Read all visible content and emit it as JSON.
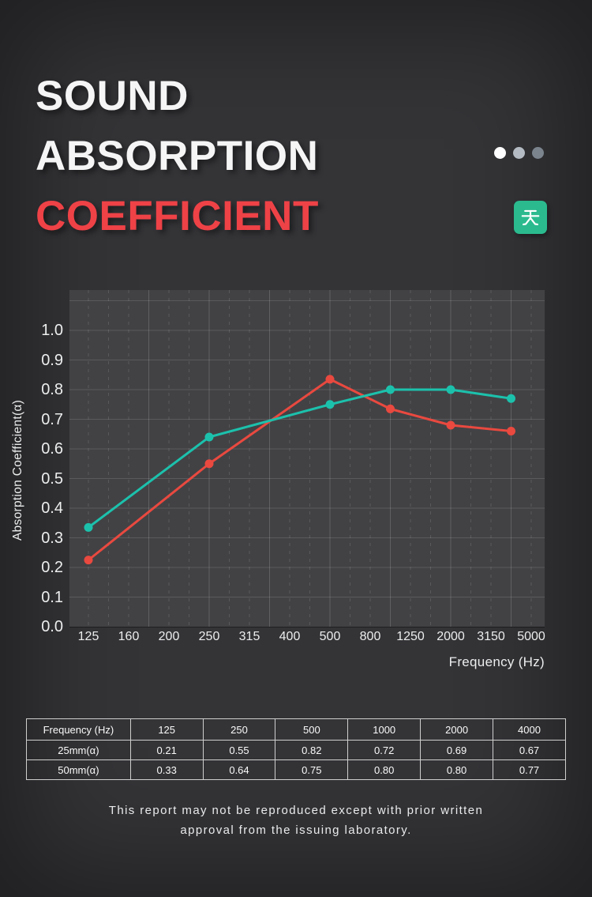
{
  "page": {
    "bg_color": "#343437",
    "plot_bg_color": "#424245",
    "text_color": "#f2f2f3"
  },
  "header": {
    "title_lines": [
      "SOUND",
      "ABSORPTION",
      "COEFFICIENT"
    ],
    "title_colors": [
      "#f5f5f6",
      "#f5f5f6",
      "#ee4247"
    ],
    "dots": [
      "#ffffff",
      "#b4bbc2",
      "#7b848d"
    ],
    "logo": {
      "glyph": "tian-character",
      "bg_color": "#2bba8e",
      "stroke_color": "#ffffff"
    }
  },
  "chart_data": {
    "type": "line",
    "title": "",
    "xlabel": "Frequency (Hz)",
    "ylabel": "Absorption Coefficient(α)",
    "x_tick_labels": [
      "125",
      "160",
      "200",
      "250",
      "315",
      "400",
      "500",
      "800",
      "1250",
      "2000",
      "3150",
      "5000"
    ],
    "y_tick_labels": [
      "0.0",
      "0.1",
      "0.2",
      "0.3",
      "0.4",
      "0.5",
      "0.6",
      "0.7",
      "0.8",
      "0.9",
      "1.0"
    ],
    "ylim": [
      0,
      1.13
    ],
    "grid": true,
    "legend": false,
    "x_values": [
      125,
      250,
      500,
      1000,
      2000,
      4000
    ],
    "x_tick_index": [
      0,
      3,
      6,
      7.5,
      9,
      10.5
    ],
    "series": [
      {
        "name": "25mm(α)",
        "color": "#e9493f",
        "values": [
          0.21,
          0.55,
          0.82,
          0.72,
          0.69,
          0.67
        ],
        "plotted_values": [
          0.225,
          0.55,
          0.835,
          0.735,
          0.68,
          0.66
        ]
      },
      {
        "name": "50mm(α)",
        "color": "#1cc1ac",
        "values": [
          0.33,
          0.64,
          0.75,
          0.8,
          0.8,
          0.77
        ],
        "plotted_values": [
          0.335,
          0.64,
          0.75,
          0.8,
          0.8,
          0.77
        ]
      }
    ]
  },
  "table": {
    "header": [
      "Frequency (Hz)",
      "125",
      "250",
      "500",
      "1000",
      "2000",
      "4000"
    ],
    "rows": [
      [
        "25mm(α)",
        "0.21",
        "0.55",
        "0.82",
        "0.72",
        "0.69",
        "0.67"
      ],
      [
        "50mm(α)",
        "0.33",
        "0.64",
        "0.75",
        "0.80",
        "0.80",
        "0.77"
      ]
    ]
  },
  "footer": {
    "line1": "This report may not be reproduced except with prior written",
    "line2": "approval from the issuing laboratory."
  }
}
